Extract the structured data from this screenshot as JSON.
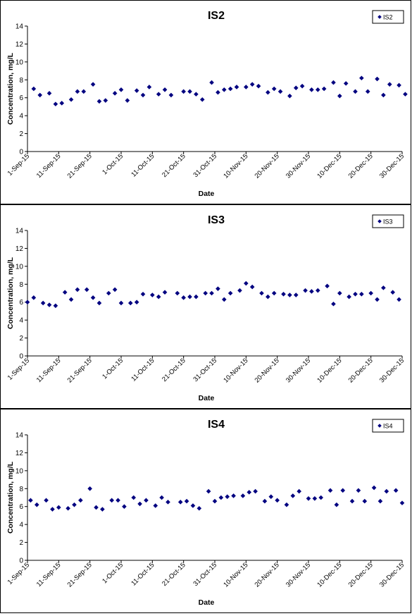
{
  "chart_data": [
    {
      "type": "scatter",
      "title": "IS2",
      "xlabel": "Date",
      "ylabel": "Concentration, mg/L",
      "xlim": [
        "2015-09-01",
        "2015-12-30"
      ],
      "ylim": [
        0,
        14
      ],
      "y_ticks": [
        0,
        2,
        4,
        6,
        8,
        10,
        12,
        14
      ],
      "x_ticks": [
        "1-Sep-15",
        "11-Sep-15",
        "21-Sep-15",
        "1-Oct-15",
        "11-Oct-15",
        "21-Oct-15",
        "31-Oct-15",
        "10-Nov-15",
        "20-Nov-15",
        "30-Nov-15",
        "10-Dec-15",
        "20-Dec-15",
        "30-Dec-15"
      ],
      "grid": false,
      "legend_position": "top-right",
      "series": [
        {
          "name": "IS2",
          "color": "#000080",
          "marker": "diamond",
          "points": [
            [
              "2015-09-03",
              7.0
            ],
            [
              "2015-09-05",
              6.3
            ],
            [
              "2015-09-08",
              6.5
            ],
            [
              "2015-09-10",
              5.3
            ],
            [
              "2015-09-12",
              5.4
            ],
            [
              "2015-09-15",
              5.8
            ],
            [
              "2015-09-17",
              6.7
            ],
            [
              "2015-09-19",
              6.7
            ],
            [
              "2015-09-22",
              7.5
            ],
            [
              "2015-09-24",
              5.6
            ],
            [
              "2015-09-26",
              5.7
            ],
            [
              "2015-09-29",
              6.5
            ],
            [
              "2015-10-01",
              6.9
            ],
            [
              "2015-10-03",
              5.7
            ],
            [
              "2015-10-06",
              6.8
            ],
            [
              "2015-10-08",
              6.3
            ],
            [
              "2015-10-10",
              7.2
            ],
            [
              "2015-10-13",
              6.4
            ],
            [
              "2015-10-15",
              6.9
            ],
            [
              "2015-10-17",
              6.3
            ],
            [
              "2015-10-21",
              6.7
            ],
            [
              "2015-10-23",
              6.7
            ],
            [
              "2015-10-25",
              6.4
            ],
            [
              "2015-10-27",
              5.8
            ],
            [
              "2015-10-30",
              7.7
            ],
            [
              "2015-11-01",
              6.6
            ],
            [
              "2015-11-03",
              6.9
            ],
            [
              "2015-11-05",
              7.0
            ],
            [
              "2015-11-07",
              7.2
            ],
            [
              "2015-11-10",
              7.2
            ],
            [
              "2015-11-12",
              7.5
            ],
            [
              "2015-11-14",
              7.3
            ],
            [
              "2015-11-17",
              6.6
            ],
            [
              "2015-11-19",
              7.0
            ],
            [
              "2015-11-21",
              6.7
            ],
            [
              "2015-11-24",
              6.2
            ],
            [
              "2015-11-26",
              7.1
            ],
            [
              "2015-11-28",
              7.3
            ],
            [
              "2015-12-01",
              6.9
            ],
            [
              "2015-12-03",
              6.9
            ],
            [
              "2015-12-05",
              7.0
            ],
            [
              "2015-12-08",
              7.7
            ],
            [
              "2015-12-10",
              6.2
            ],
            [
              "2015-12-12",
              7.6
            ],
            [
              "2015-12-15",
              6.7
            ],
            [
              "2015-12-17",
              8.2
            ],
            [
              "2015-12-19",
              6.7
            ],
            [
              "2015-12-22",
              8.1
            ],
            [
              "2015-12-24",
              6.3
            ],
            [
              "2015-12-26",
              7.5
            ],
            [
              "2015-12-29",
              7.4
            ],
            [
              "2015-12-31",
              6.4
            ]
          ]
        }
      ]
    },
    {
      "type": "scatter",
      "title": "IS3",
      "xlabel": "Date",
      "ylabel": "Concentration, mg/L",
      "xlim": [
        "2015-09-01",
        "2015-12-30"
      ],
      "ylim": [
        0,
        14
      ],
      "y_ticks": [
        0,
        2,
        4,
        6,
        8,
        10,
        12,
        14
      ],
      "x_ticks": [
        "1-Sep-15",
        "11-Sep-15",
        "21-Sep-15",
        "1-Oct-15",
        "11-Oct-15",
        "21-Oct-15",
        "31-Oct-15",
        "10-Nov-15",
        "20-Nov-15",
        "30-Nov-15",
        "10-Dec-15",
        "20-Dec-15",
        "30-Dec-15"
      ],
      "grid": false,
      "legend_position": "top-right",
      "series": [
        {
          "name": "IS3",
          "color": "#000080",
          "marker": "diamond",
          "points": [
            [
              "2015-09-01",
              6.0
            ],
            [
              "2015-09-03",
              6.5
            ],
            [
              "2015-09-06",
              5.9
            ],
            [
              "2015-09-08",
              5.7
            ],
            [
              "2015-09-10",
              5.6
            ],
            [
              "2015-09-13",
              7.1
            ],
            [
              "2015-09-15",
              6.3
            ],
            [
              "2015-09-17",
              7.4
            ],
            [
              "2015-09-20",
              7.4
            ],
            [
              "2015-09-22",
              6.5
            ],
            [
              "2015-09-24",
              5.9
            ],
            [
              "2015-09-27",
              7.0
            ],
            [
              "2015-09-29",
              7.4
            ],
            [
              "2015-10-01",
              5.9
            ],
            [
              "2015-10-04",
              5.9
            ],
            [
              "2015-10-06",
              6.0
            ],
            [
              "2015-10-08",
              6.9
            ],
            [
              "2015-10-11",
              6.8
            ],
            [
              "2015-10-13",
              6.6
            ],
            [
              "2015-10-15",
              7.1
            ],
            [
              "2015-10-19",
              7.0
            ],
            [
              "2015-10-21",
              6.5
            ],
            [
              "2015-10-23",
              6.6
            ],
            [
              "2015-10-25",
              6.6
            ],
            [
              "2015-10-28",
              7.0
            ],
            [
              "2015-10-30",
              7.0
            ],
            [
              "2015-11-01",
              7.5
            ],
            [
              "2015-11-03",
              6.3
            ],
            [
              "2015-11-05",
              7.0
            ],
            [
              "2015-11-08",
              7.3
            ],
            [
              "2015-11-10",
              8.1
            ],
            [
              "2015-11-12",
              7.7
            ],
            [
              "2015-11-15",
              7.0
            ],
            [
              "2015-11-17",
              6.6
            ],
            [
              "2015-11-19",
              7.0
            ],
            [
              "2015-11-22",
              6.9
            ],
            [
              "2015-11-24",
              6.8
            ],
            [
              "2015-11-26",
              6.8
            ],
            [
              "2015-11-29",
              7.3
            ],
            [
              "2015-12-01",
              7.2
            ],
            [
              "2015-12-03",
              7.3
            ],
            [
              "2015-12-06",
              7.8
            ],
            [
              "2015-12-08",
              5.8
            ],
            [
              "2015-12-10",
              7.0
            ],
            [
              "2015-12-13",
              6.6
            ],
            [
              "2015-12-15",
              6.9
            ],
            [
              "2015-12-17",
              6.9
            ],
            [
              "2015-12-20",
              7.0
            ],
            [
              "2015-12-22",
              6.3
            ],
            [
              "2015-12-24",
              7.6
            ],
            [
              "2015-12-27",
              7.1
            ],
            [
              "2015-12-29",
              6.3
            ]
          ]
        }
      ]
    },
    {
      "type": "scatter",
      "title": "IS4",
      "xlabel": "Date",
      "ylabel": "Concentration, mg/L",
      "xlim": [
        "2015-09-01",
        "2015-12-30"
      ],
      "ylim": [
        0,
        14
      ],
      "y_ticks": [
        0,
        2,
        4,
        6,
        8,
        10,
        12,
        14
      ],
      "x_ticks": [
        "1-Sep-15",
        "11-Sep-15",
        "21-Sep-15",
        "1-Oct-15",
        "11-Oct-15",
        "21-Oct-15",
        "31-Oct-15",
        "10-Nov-15",
        "20-Nov-15",
        "30-Nov-15",
        "10-Dec-15",
        "20-Dec-15",
        "30-Dec-15"
      ],
      "grid": false,
      "legend_position": "top-right",
      "series": [
        {
          "name": "IS4",
          "color": "#000080",
          "marker": "diamond",
          "points": [
            [
              "2015-09-02",
              6.7
            ],
            [
              "2015-09-04",
              6.2
            ],
            [
              "2015-09-07",
              6.7
            ],
            [
              "2015-09-09",
              5.7
            ],
            [
              "2015-09-11",
              5.9
            ],
            [
              "2015-09-14",
              5.8
            ],
            [
              "2015-09-16",
              6.2
            ],
            [
              "2015-09-18",
              6.7
            ],
            [
              "2015-09-21",
              8.0
            ],
            [
              "2015-09-23",
              5.9
            ],
            [
              "2015-09-25",
              5.7
            ],
            [
              "2015-09-28",
              6.7
            ],
            [
              "2015-09-30",
              6.7
            ],
            [
              "2015-10-02",
              6.0
            ],
            [
              "2015-10-05",
              7.0
            ],
            [
              "2015-10-07",
              6.3
            ],
            [
              "2015-10-09",
              6.7
            ],
            [
              "2015-10-12",
              6.1
            ],
            [
              "2015-10-14",
              7.0
            ],
            [
              "2015-10-16",
              6.5
            ],
            [
              "2015-10-20",
              6.5
            ],
            [
              "2015-10-22",
              6.6
            ],
            [
              "2015-10-24",
              6.1
            ],
            [
              "2015-10-26",
              5.8
            ],
            [
              "2015-10-29",
              7.7
            ],
            [
              "2015-10-31",
              6.6
            ],
            [
              "2015-11-02",
              7.0
            ],
            [
              "2015-11-04",
              7.1
            ],
            [
              "2015-11-06",
              7.2
            ],
            [
              "2015-11-09",
              7.2
            ],
            [
              "2015-11-11",
              7.6
            ],
            [
              "2015-11-13",
              7.7
            ],
            [
              "2015-11-16",
              6.6
            ],
            [
              "2015-11-18",
              7.1
            ],
            [
              "2015-11-20",
              6.7
            ],
            [
              "2015-11-23",
              6.2
            ],
            [
              "2015-11-25",
              7.2
            ],
            [
              "2015-11-27",
              7.7
            ],
            [
              "2015-11-30",
              6.9
            ],
            [
              "2015-12-02",
              6.9
            ],
            [
              "2015-12-04",
              7.0
            ],
            [
              "2015-12-07",
              7.8
            ],
            [
              "2015-12-09",
              6.2
            ],
            [
              "2015-12-11",
              7.8
            ],
            [
              "2015-12-14",
              6.6
            ],
            [
              "2015-12-16",
              7.8
            ],
            [
              "2015-12-18",
              6.6
            ],
            [
              "2015-12-21",
              8.1
            ],
            [
              "2015-12-23",
              6.6
            ],
            [
              "2015-12-25",
              7.7
            ],
            [
              "2015-12-28",
              7.8
            ],
            [
              "2015-12-30",
              6.4
            ]
          ]
        }
      ]
    }
  ]
}
